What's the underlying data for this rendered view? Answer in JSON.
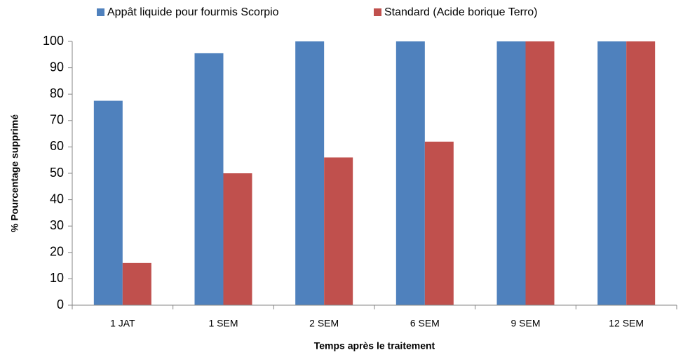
{
  "chart_data": {
    "type": "bar",
    "categories": [
      "1 JAT",
      "1 SEM",
      "2 SEM",
      "6 SEM",
      "9 SEM",
      "12 SEM"
    ],
    "series": [
      {
        "name": "Appât liquide pour fourmis Scorpio",
        "color": "#4f81bd",
        "values": [
          77.5,
          95.5,
          100,
          100,
          100,
          100
        ]
      },
      {
        "name": "Standard (Acide borique Terro)",
        "color": "#c0504d",
        "values": [
          16,
          50,
          56,
          62,
          100,
          100
        ]
      }
    ],
    "x_label": "Temps après le traitement",
    "y_label": "% Pourcentage supprimé",
    "ylim": [
      0,
      100
    ],
    "yticks": [
      0,
      10,
      20,
      30,
      40,
      50,
      60,
      70,
      80,
      90,
      100
    ],
    "grid": false,
    "legend": "top"
  }
}
